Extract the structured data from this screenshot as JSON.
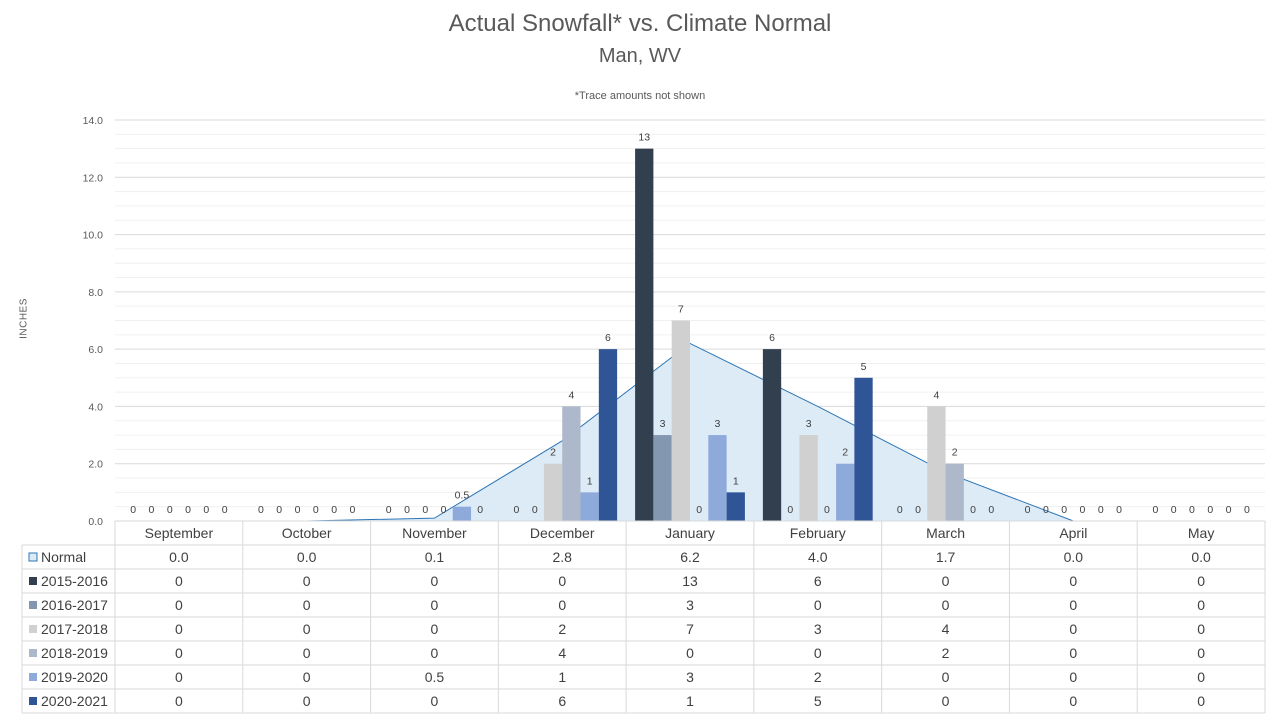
{
  "chart_data": {
    "type": "bar",
    "title": "Actual Snowfall* vs. Climate Normal",
    "subtitle": "Man, WV",
    "note": "*Trace amounts not shown",
    "ylabel": "INCHES",
    "ylim": [
      0,
      14
    ],
    "yticks": [
      "0.0",
      "2.0",
      "4.0",
      "6.0",
      "8.0",
      "10.0",
      "12.0",
      "14.0"
    ],
    "grid": true,
    "legend_placement": "data-table-left",
    "categories": [
      "September",
      "October",
      "November",
      "December",
      "January",
      "February",
      "March",
      "April",
      "May"
    ],
    "normal": {
      "name": "Normal",
      "type": "area",
      "color": "#ddebf7",
      "line_color": "#2e75b6",
      "values": [
        "0.0",
        "0.0",
        "0.1",
        "2.8",
        "6.2",
        "4.0",
        "1.7",
        "0.0",
        "0.0"
      ]
    },
    "series": [
      {
        "name": "2015-2016",
        "color": "#323f4f",
        "values": [
          "0",
          "0",
          "0",
          "0",
          "13",
          "6",
          "0",
          "0",
          "0"
        ]
      },
      {
        "name": "2016-2017",
        "color": "#8497b0",
        "values": [
          "0",
          "0",
          "0",
          "0",
          "3",
          "0",
          "0",
          "0",
          "0"
        ]
      },
      {
        "name": "2017-2018",
        "color": "#d0d0d0",
        "values": [
          "0",
          "0",
          "0",
          "2",
          "7",
          "3",
          "4",
          "0",
          "0"
        ]
      },
      {
        "name": "2018-2019",
        "color": "#adb9ca",
        "values": [
          "0",
          "0",
          "0",
          "4",
          "0",
          "0",
          "2",
          "0",
          "0"
        ]
      },
      {
        "name": "2019-2020",
        "color": "#8eaadb",
        "values": [
          "0",
          "0",
          "0.5",
          "1",
          "3",
          "2",
          "0",
          "0",
          "0"
        ]
      },
      {
        "name": "2020-2021",
        "color": "#2f5597",
        "values": [
          "0",
          "0",
          "0",
          "6",
          "1",
          "5",
          "0",
          "0",
          "0"
        ]
      }
    ]
  }
}
